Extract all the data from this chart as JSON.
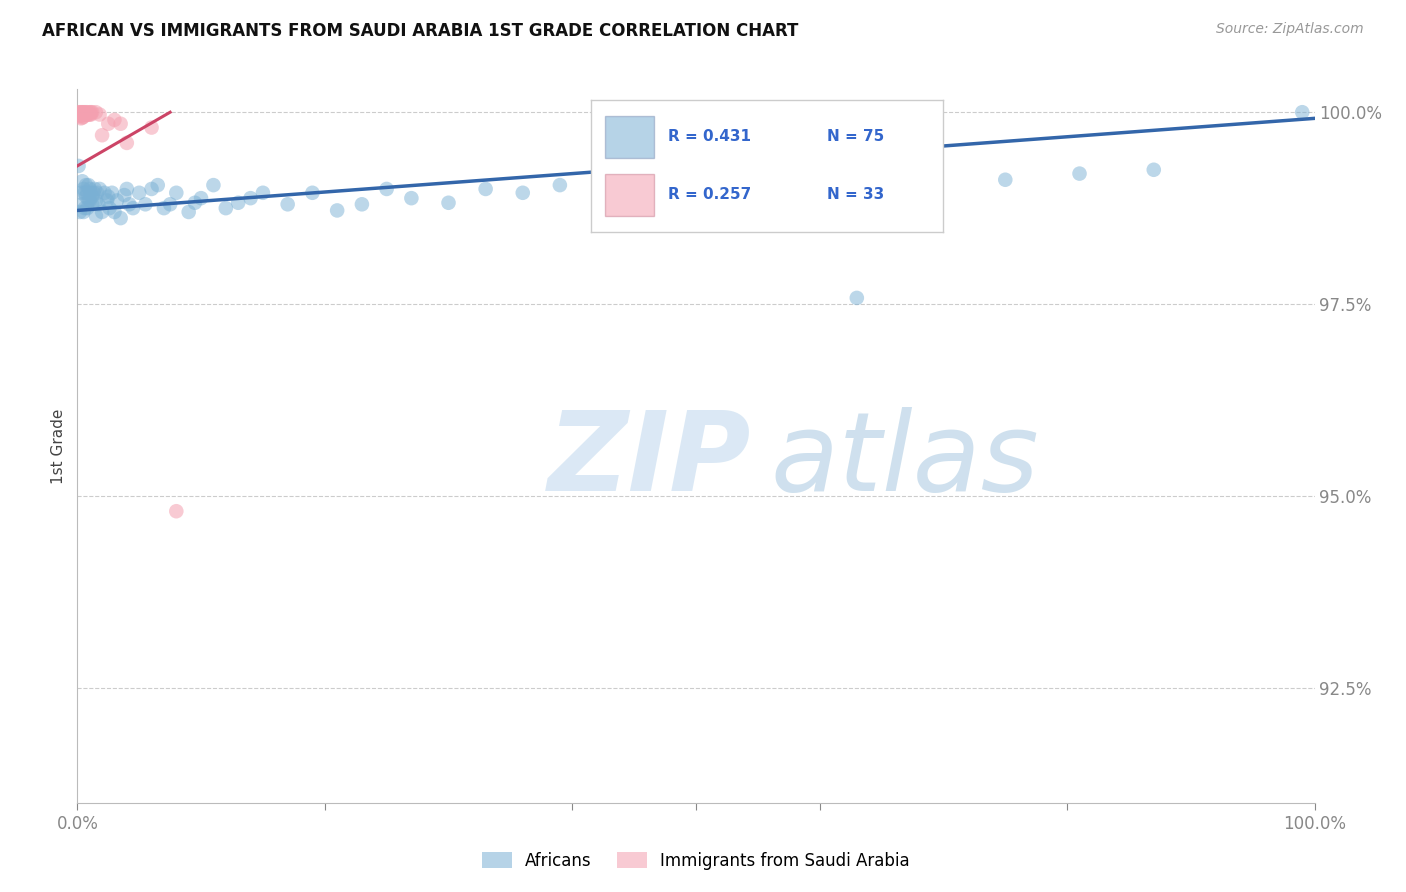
{
  "title": "AFRICAN VS IMMIGRANTS FROM SAUDI ARABIA 1ST GRADE CORRELATION CHART",
  "source": "Source: ZipAtlas.com",
  "ylabel": "1st Grade",
  "xlim": [
    0.0,
    1.0
  ],
  "ylim": [
    0.91,
    1.003
  ],
  "yticks": [
    0.925,
    0.95,
    0.975,
    1.0
  ],
  "ytick_labels": [
    "92.5%",
    "95.0%",
    "97.5%",
    "100.0%"
  ],
  "gridline_color": "#cccccc",
  "background_color": "#ffffff",
  "blue_color": "#7ab0d4",
  "pink_color": "#f4a0b0",
  "blue_line_color": "#3366aa",
  "pink_line_color": "#cc4466",
  "legend_R_blue": "R = 0.431",
  "legend_N_blue": "N = 75",
  "legend_R_pink": "R = 0.257",
  "legend_N_pink": "N = 33",
  "blue_scatter": [
    [
      0.001,
      0.993
    ],
    [
      0.002,
      0.987
    ],
    [
      0.003,
      0.9895
    ],
    [
      0.004,
      0.991
    ],
    [
      0.004,
      0.988
    ],
    [
      0.005,
      0.99
    ],
    [
      0.005,
      0.987
    ],
    [
      0.006,
      0.9895
    ],
    [
      0.006,
      0.9875
    ],
    [
      0.007,
      0.989
    ],
    [
      0.007,
      0.9905
    ],
    [
      0.008,
      0.9895
    ],
    [
      0.008,
      0.9875
    ],
    [
      0.009,
      0.9905
    ],
    [
      0.009,
      0.9885
    ],
    [
      0.01,
      0.99
    ],
    [
      0.01,
      0.9885
    ],
    [
      0.011,
      0.9895
    ],
    [
      0.012,
      0.988
    ],
    [
      0.012,
      0.989
    ],
    [
      0.013,
      0.9895
    ],
    [
      0.014,
      0.99
    ],
    [
      0.015,
      0.9885
    ],
    [
      0.015,
      0.9865
    ],
    [
      0.016,
      0.9895
    ],
    [
      0.017,
      0.988
    ],
    [
      0.018,
      0.99
    ],
    [
      0.02,
      0.987
    ],
    [
      0.022,
      0.9895
    ],
    [
      0.024,
      0.9885
    ],
    [
      0.025,
      0.989
    ],
    [
      0.026,
      0.9875
    ],
    [
      0.028,
      0.9895
    ],
    [
      0.03,
      0.987
    ],
    [
      0.032,
      0.9885
    ],
    [
      0.035,
      0.9862
    ],
    [
      0.038,
      0.9892
    ],
    [
      0.04,
      0.99
    ],
    [
      0.042,
      0.988
    ],
    [
      0.045,
      0.9875
    ],
    [
      0.05,
      0.9895
    ],
    [
      0.055,
      0.988
    ],
    [
      0.06,
      0.99
    ],
    [
      0.065,
      0.9905
    ],
    [
      0.07,
      0.9875
    ],
    [
      0.075,
      0.988
    ],
    [
      0.08,
      0.9895
    ],
    [
      0.09,
      0.987
    ],
    [
      0.095,
      0.9882
    ],
    [
      0.1,
      0.9888
    ],
    [
      0.11,
      0.9905
    ],
    [
      0.12,
      0.9875
    ],
    [
      0.13,
      0.9882
    ],
    [
      0.14,
      0.9888
    ],
    [
      0.15,
      0.9895
    ],
    [
      0.17,
      0.988
    ],
    [
      0.19,
      0.9895
    ],
    [
      0.21,
      0.9872
    ],
    [
      0.23,
      0.988
    ],
    [
      0.25,
      0.99
    ],
    [
      0.27,
      0.9888
    ],
    [
      0.3,
      0.9882
    ],
    [
      0.33,
      0.99
    ],
    [
      0.36,
      0.9895
    ],
    [
      0.39,
      0.9905
    ],
    [
      0.43,
      0.9875
    ],
    [
      0.47,
      0.9902
    ],
    [
      0.52,
      0.988
    ],
    [
      0.57,
      0.989
    ],
    [
      0.63,
      0.9758
    ],
    [
      0.69,
      0.9898
    ],
    [
      0.75,
      0.9912
    ],
    [
      0.81,
      0.992
    ],
    [
      0.87,
      0.9925
    ],
    [
      0.99,
      1.0
    ]
  ],
  "pink_scatter": [
    [
      0.001,
      1.0
    ],
    [
      0.002,
      1.0
    ],
    [
      0.002,
      0.9995
    ],
    [
      0.003,
      1.0
    ],
    [
      0.003,
      0.9996
    ],
    [
      0.003,
      0.9992
    ],
    [
      0.004,
      1.0
    ],
    [
      0.004,
      0.9996
    ],
    [
      0.004,
      0.9993
    ],
    [
      0.005,
      1.0
    ],
    [
      0.005,
      0.9997
    ],
    [
      0.005,
      0.9994
    ],
    [
      0.006,
      1.0
    ],
    [
      0.006,
      0.9997
    ],
    [
      0.007,
      1.0
    ],
    [
      0.007,
      0.9997
    ],
    [
      0.008,
      1.0
    ],
    [
      0.008,
      0.9997
    ],
    [
      0.009,
      0.9997
    ],
    [
      0.01,
      1.0
    ],
    [
      0.01,
      0.9997
    ],
    [
      0.011,
      1.0
    ],
    [
      0.011,
      0.9997
    ],
    [
      0.012,
      1.0
    ],
    [
      0.015,
      1.0
    ],
    [
      0.018,
      0.9997
    ],
    [
      0.02,
      0.997
    ],
    [
      0.025,
      0.9985
    ],
    [
      0.03,
      0.999
    ],
    [
      0.035,
      0.9985
    ],
    [
      0.04,
      0.996
    ],
    [
      0.06,
      0.998
    ],
    [
      0.08,
      0.948
    ]
  ],
  "blue_trend_x": [
    0.0,
    1.0
  ],
  "blue_trend_y": [
    0.9872,
    0.9992
  ],
  "pink_trend_x": [
    0.0,
    0.075
  ],
  "pink_trend_y": [
    0.993,
    1.0
  ]
}
